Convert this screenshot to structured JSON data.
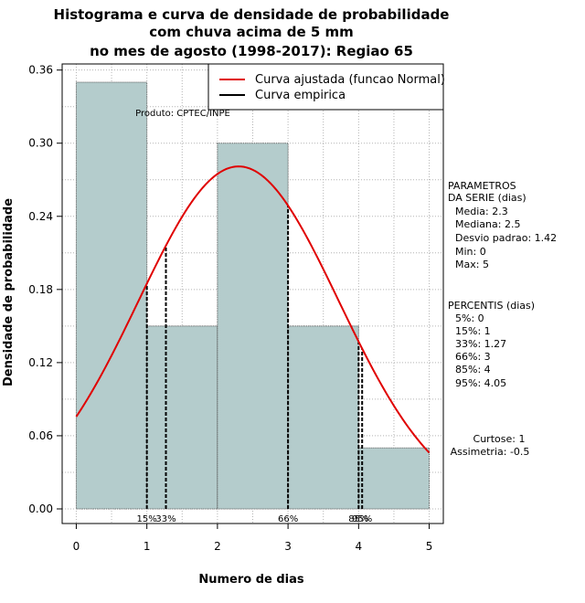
{
  "chart_data": {
    "type": "bar",
    "title": [
      "Histograma e curva de densidade de probabilidade",
      "com chuva acima de 5 mm",
      "no mes de agosto (1998-2017): Regiao 65"
    ],
    "xlabel": "Numero de dias",
    "ylabel": "Densidade de probabilidade",
    "xlim": [
      -0.2,
      5.2
    ],
    "ylim": [
      -0.012,
      0.365
    ],
    "x_ticks": [
      0,
      1,
      2,
      3,
      4,
      5
    ],
    "y_ticks": [
      0.0,
      0.06,
      0.12,
      0.18,
      0.24,
      0.3,
      0.36
    ],
    "y_tick_labels": [
      "0.00",
      "0.06",
      "0.12",
      "0.18",
      "0.24",
      "0.30",
      "0.36"
    ],
    "bins": [
      {
        "start": 0,
        "end": 1,
        "density": 0.35
      },
      {
        "start": 1,
        "end": 2,
        "density": 0.15
      },
      {
        "start": 2,
        "end": 3,
        "density": 0.3
      },
      {
        "start": 3,
        "end": 4,
        "density": 0.15
      },
      {
        "start": 4,
        "end": 5,
        "density": 0.05
      }
    ],
    "normal_fit": {
      "mean": 2.3,
      "sd": 1.42,
      "x_range": [
        0,
        5
      ]
    },
    "percentile_lines": [
      {
        "x": 1,
        "label": "15%",
        "show_label": true
      },
      {
        "x": 1.27,
        "label": "33%",
        "show_label": true
      },
      {
        "x": 3,
        "label": "66%",
        "show_label": true
      },
      {
        "x": 4,
        "label": "85%",
        "show_label": true
      },
      {
        "x": 4.05,
        "label": "95%",
        "show_label": true
      }
    ],
    "legend": [
      {
        "label": "Curva ajustada (funcao Normal)",
        "color": "#e00000"
      },
      {
        "label": "Curva empirica",
        "color": "#000000"
      }
    ],
    "legend_position": "top-right",
    "grid": true,
    "colors": {
      "bar_fill": "#b4cccc",
      "fit_line": "#e00000",
      "grid": "#b4b4b4"
    }
  },
  "producer_note": "Produto: CPTEC/INPE",
  "side_panel": {
    "params_title": [
      "PARAMETROS",
      "DA SERIE (dias)"
    ],
    "params": [
      "Media: 2.3",
      "Mediana: 2.5",
      "Desvio padrao: 1.42",
      "Min: 0",
      "Max: 5"
    ],
    "percentis_title": "PERCENTIS (dias)",
    "percentis": [
      "5%: 0",
      "15%: 1",
      "33%: 1.27",
      "66%: 3",
      "85%: 4",
      "95%: 4.05"
    ],
    "stats": [
      "Curtose: 1",
      "Assimetria: -0.5"
    ]
  }
}
